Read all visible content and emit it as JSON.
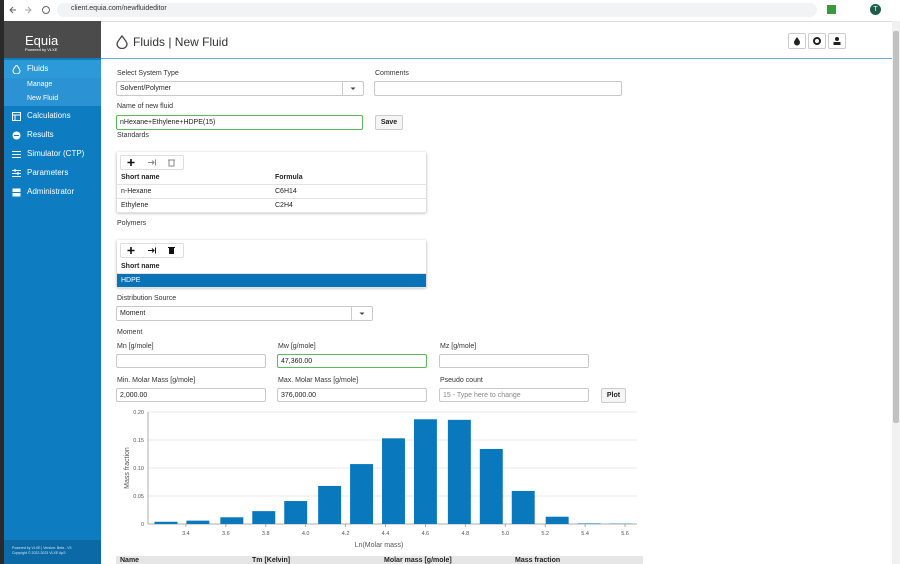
{
  "browser": {
    "url": "client.equia.com/newfluideditor",
    "profile_initial": "T"
  },
  "sidebar": {
    "brand": "Equia",
    "tagline": "Powered by VLXE",
    "menu": [
      {
        "label": "Fluids",
        "children": [
          "Manage",
          "New Fluid"
        ]
      },
      {
        "label": "Calculations"
      },
      {
        "label": "Results"
      },
      {
        "label": "Simulator (CTP)"
      },
      {
        "label": "Parameters"
      },
      {
        "label": "Administrator"
      }
    ],
    "footer": [
      "Powered by VLXE | Version: Beta - V3",
      "Copyright © 2022-2023 VLXE ApS"
    ]
  },
  "header": {
    "title": "Fluids | New Fluid"
  },
  "form": {
    "system_type": {
      "label": "Select System Type",
      "value": "Solvent/Polymer"
    },
    "comments": {
      "label": "Comments"
    },
    "name": {
      "label": "Name of new fluid",
      "value": "nHexane+Ethylene+HDPE(15)",
      "button": "Save"
    },
    "distribution_source": {
      "label": "Distribution Source",
      "value": "Moment"
    },
    "moment_title": "Moment",
    "mn": {
      "label": "Mn [g/mole]"
    },
    "mw": {
      "label": "Mw [g/mole]",
      "value": "47,360.00"
    },
    "mz": {
      "label": "Mz [g/mole]"
    },
    "min_mass": {
      "label": "Min. Molar Mass [g/mole]",
      "value": "2,000.00"
    },
    "max_mass": {
      "label": "Max. Molar Mass [g/mole]",
      "value": "376,000.00"
    },
    "pseudo_count": {
      "label": "Pseudo count",
      "placeholder": "15 - Type here to change",
      "button": "Plot"
    }
  },
  "standards": {
    "title": "Standards",
    "columns": [
      "Short name",
      "Formula"
    ],
    "rows": [
      [
        "n-Hexane",
        "C6H14"
      ],
      [
        "Ethylene",
        "C2H4"
      ]
    ]
  },
  "polymers": {
    "title": "Polymers",
    "columns": [
      "Short name"
    ],
    "rows": [
      [
        "HDPE"
      ]
    ]
  },
  "chart_data": {
    "type": "bar",
    "x_label": "Ln(Molar mass)",
    "y_label": "Mass fraction",
    "x": [
      3.3,
      3.46,
      3.63,
      3.79,
      3.95,
      4.12,
      4.28,
      4.44,
      4.6,
      4.77,
      4.93,
      5.09,
      5.26,
      5.42,
      5.58
    ],
    "values": [
      0.004,
      0.006,
      0.012,
      0.023,
      0.041,
      0.068,
      0.107,
      0.153,
      0.187,
      0.186,
      0.134,
      0.059,
      0.013,
      0.001,
      0.0005
    ],
    "color": "#0a78bd",
    "bar_width": 0.115,
    "xlim": [
      3.21,
      5.66
    ],
    "ylim": [
      0,
      0.2
    ],
    "xticks": [
      3.4,
      3.6,
      3.8,
      {
        "value": 4,
        "label": "4.0"
      },
      4.2,
      4.4,
      4.6,
      4.8,
      {
        "value": 5,
        "label": "5.0"
      },
      5.2,
      5.4,
      5.6
    ],
    "yticks": [
      0,
      0.05,
      {
        "value": 0.1,
        "label": "0.10"
      },
      0.15,
      {
        "value": 0.2,
        "label": "0.20"
      }
    ],
    "grid": true
  },
  "results_table": {
    "columns": [
      "Name",
      "Tm [Kelvin]",
      "Molar mass [g/mole]",
      "Mass fraction"
    ]
  }
}
